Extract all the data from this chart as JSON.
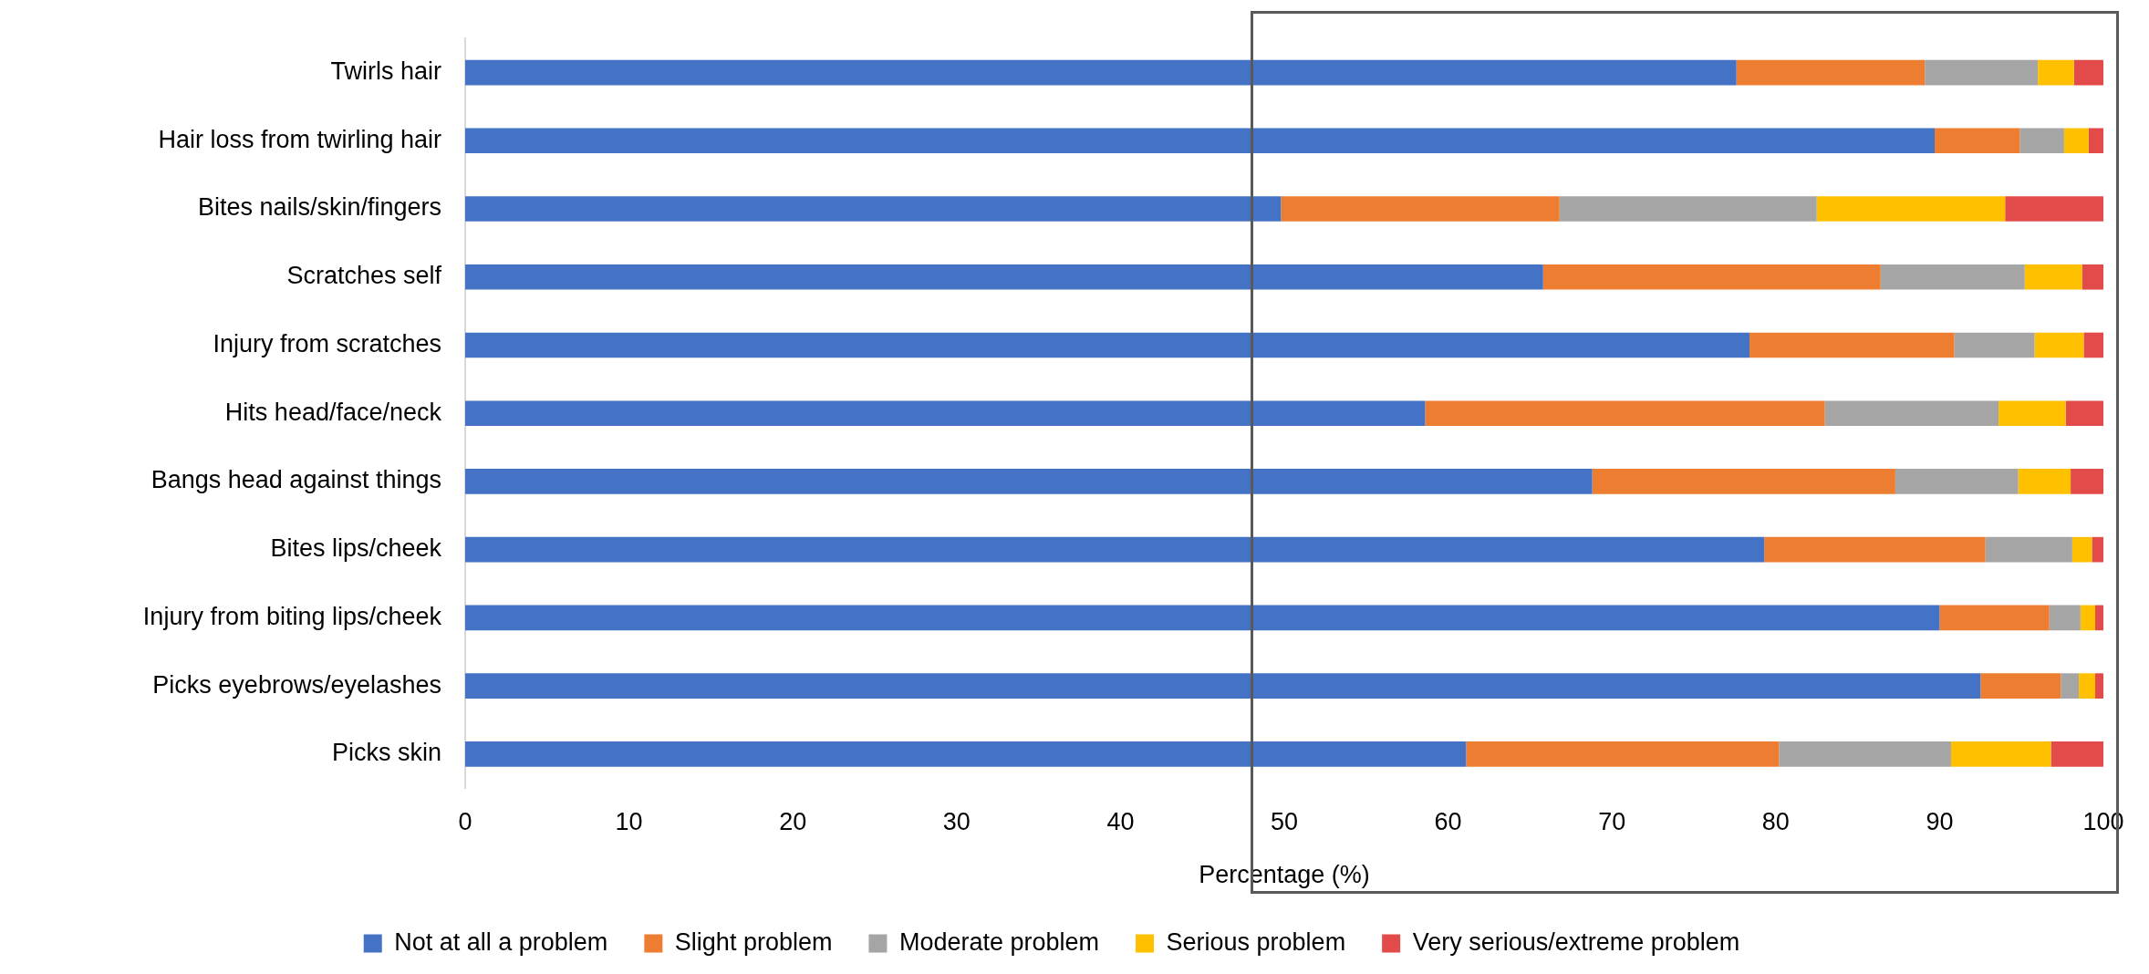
{
  "chart_data": {
    "type": "bar",
    "orientation": "horizontal",
    "stacked": true,
    "xlabel": "Percentage (%)",
    "categories": [
      "Twirls hair",
      "Hair loss from twirling hair",
      "Bites nails/skin/fingers",
      "Scratches self",
      "Injury from scratches",
      "Hits head/face/neck",
      "Bangs head against things",
      "Bites lips/cheek",
      "Injury from biting lips/cheek",
      "Picks eyebrows/eyelashes",
      "Picks skin"
    ],
    "series": [
      {
        "name": "Not at all a problem",
        "color": "#4472c4",
        "values": [
          77.6,
          89.7,
          49.8,
          65.8,
          78.4,
          58.6,
          68.8,
          79.3,
          90.0,
          92.5,
          61.1
        ]
      },
      {
        "name": "Slight problem",
        "color": "#ed7d31",
        "values": [
          11.5,
          5.2,
          17.0,
          20.6,
          12.5,
          24.4,
          18.5,
          13.5,
          6.7,
          4.9,
          19.1
        ]
      },
      {
        "name": "Moderate problem",
        "color": "#a5a5a5",
        "values": [
          6.9,
          2.7,
          15.7,
          8.8,
          4.9,
          10.6,
          7.5,
          5.3,
          1.9,
          1.1,
          10.5
        ]
      },
      {
        "name": "Serious problem",
        "color": "#ffc000",
        "values": [
          2.2,
          1.5,
          11.5,
          3.5,
          3.0,
          4.1,
          3.2,
          1.2,
          0.9,
          1.0,
          6.1
        ]
      },
      {
        "name": "Very serious/extreme problem",
        "color": "#e34b4b",
        "values": [
          1.8,
          0.9,
          6.0,
          1.3,
          1.2,
          2.3,
          2.0,
          0.7,
          0.5,
          0.5,
          3.2
        ]
      }
    ],
    "xlim": [
      0,
      100
    ],
    "xticks": [
      0,
      10,
      20,
      30,
      40,
      50,
      60,
      70,
      80,
      90,
      100
    ],
    "grid": false,
    "legend": "bottom"
  }
}
